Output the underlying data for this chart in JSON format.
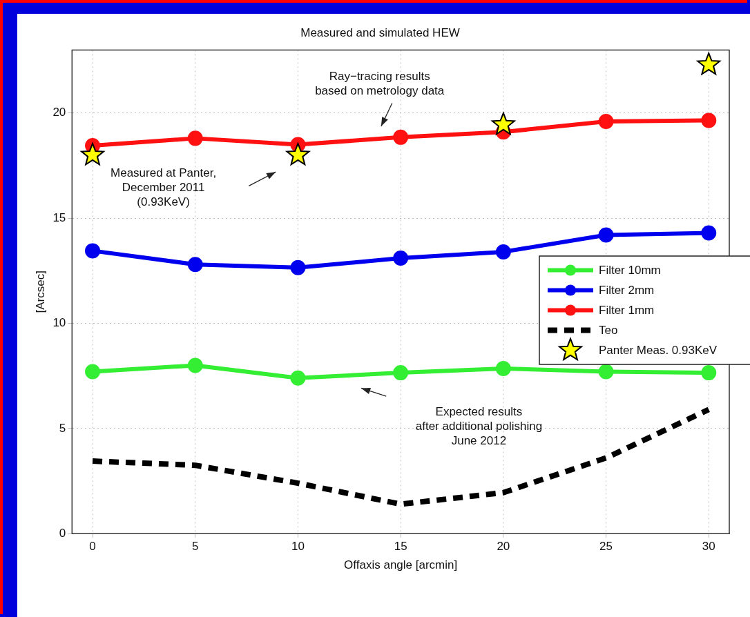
{
  "chart_data": {
    "type": "line",
    "title": "Measured and simulated HEW",
    "xlabel": "Offaxis angle [arcmin]",
    "ylabel": "[Arcsec]",
    "x": [
      0,
      5,
      10,
      15,
      20,
      25,
      30
    ],
    "xlim": [
      -1,
      31
    ],
    "xticks": [
      0,
      5,
      10,
      15,
      20,
      25,
      30
    ],
    "ylim": [
      0,
      23
    ],
    "yticks": [
      0,
      5,
      10,
      15,
      20
    ],
    "grid": true,
    "legend": "right",
    "marker": "circle",
    "line_style": "solid",
    "series": [
      {
        "name": "Filter 10mm",
        "color": "#33ee33",
        "values": [
          7.7,
          8.0,
          7.4,
          7.65,
          7.85,
          7.7,
          7.65
        ]
      },
      {
        "name": "Filter 2mm",
        "color": "#0000ee",
        "values": [
          13.45,
          12.8,
          12.65,
          13.1,
          13.4,
          14.2,
          14.3
        ]
      },
      {
        "name": "Filter 1mm",
        "color": "#ff1111",
        "values": [
          18.45,
          18.8,
          18.5,
          18.85,
          19.1,
          19.6,
          19.65
        ]
      },
      {
        "name": "Teo",
        "color": "#000000",
        "line_style": "dashed",
        "marker": "none",
        "values": [
          3.45,
          3.25,
          2.4,
          1.4,
          1.95,
          3.6,
          5.9
        ]
      },
      {
        "name": "Panter Meas. 0.93KeV",
        "type": "scatter",
        "color": "#ffff00",
        "marker": "star",
        "x": [
          0,
          10,
          20,
          30
        ],
        "values": [
          18.0,
          18.0,
          19.45,
          22.3
        ]
      }
    ],
    "annotations": [
      "Ray−tracing results\nbased on metrology data",
      "Measured at Panter,\nDecember 2011\n(0.93KeV)",
      "Expected results\nafter additional polishing\nJune 2012"
    ]
  }
}
